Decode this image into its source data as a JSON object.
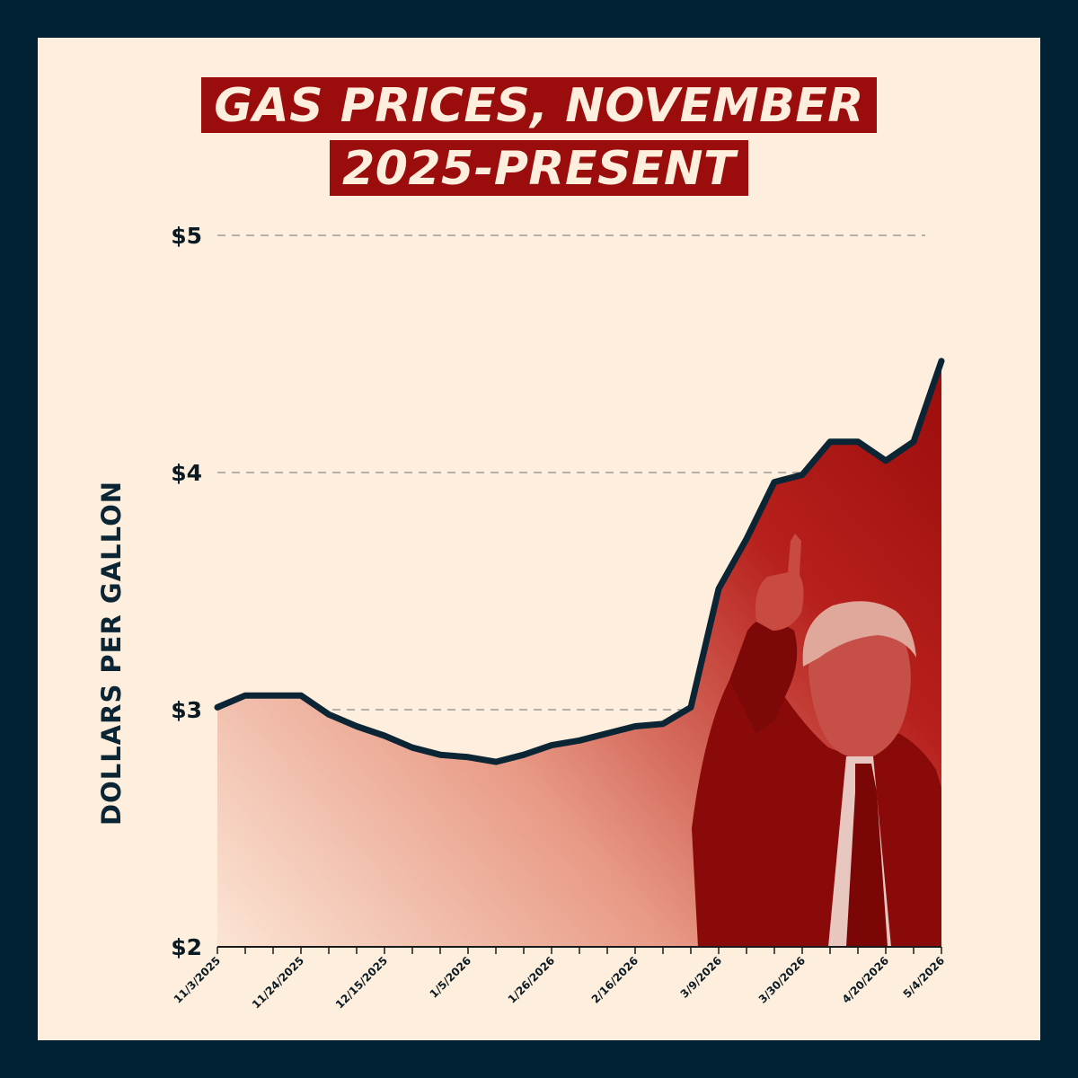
{
  "title_lines": [
    "GAS PRICES, NOVEMBER",
    "2025-PRESENT"
  ],
  "chart_data": {
    "type": "area",
    "title": "GAS PRICES, NOVEMBER 2025-PRESENT",
    "ylabel": "DOLLARS PER GALLON",
    "xlabel": "",
    "ylim": [
      2,
      5
    ],
    "yticks": [
      2,
      3,
      4,
      5
    ],
    "ytick_labels": [
      "$2",
      "$3",
      "$4",
      "$5"
    ],
    "grid": true,
    "x_tick_labels": [
      "11/3/2025",
      "11/24/2025",
      "12/15/2025",
      "1/5/2026",
      "1/26/2026",
      "2/16/2026",
      "3/9/2026",
      "3/30/2026",
      "4/20/2026",
      "5/4/2026"
    ],
    "x": [
      "11/3/2025",
      "11/10/2025",
      "11/17/2025",
      "11/24/2025",
      "12/1/2025",
      "12/8/2025",
      "12/15/2025",
      "12/22/2025",
      "12/29/2025",
      "1/5/2026",
      "1/12/2026",
      "1/19/2026",
      "1/26/2026",
      "2/2/2026",
      "2/9/2026",
      "2/16/2026",
      "2/23/2026",
      "3/2/2026",
      "3/9/2026",
      "3/16/2026",
      "3/23/2026",
      "3/30/2026",
      "4/6/2026",
      "4/13/2026",
      "4/20/2026",
      "4/27/2026",
      "5/4/2026"
    ],
    "series": [
      {
        "values": [
          3.01,
          3.06,
          3.06,
          3.06,
          2.98,
          2.93,
          2.89,
          2.84,
          2.81,
          2.8,
          2.78,
          2.81,
          2.85,
          2.87,
          2.9,
          2.93,
          2.94,
          3.01,
          3.51,
          3.72,
          3.96,
          3.99,
          4.13,
          4.13,
          4.05,
          4.13,
          4.47
        ]
      }
    ],
    "colors": {
      "line": "#0b2535",
      "fill_light": "#f7d4bf",
      "fill_dark": "#9b0d0d",
      "grid": "#8c8a88",
      "background": "#fdeedd",
      "border": "#012235"
    }
  }
}
